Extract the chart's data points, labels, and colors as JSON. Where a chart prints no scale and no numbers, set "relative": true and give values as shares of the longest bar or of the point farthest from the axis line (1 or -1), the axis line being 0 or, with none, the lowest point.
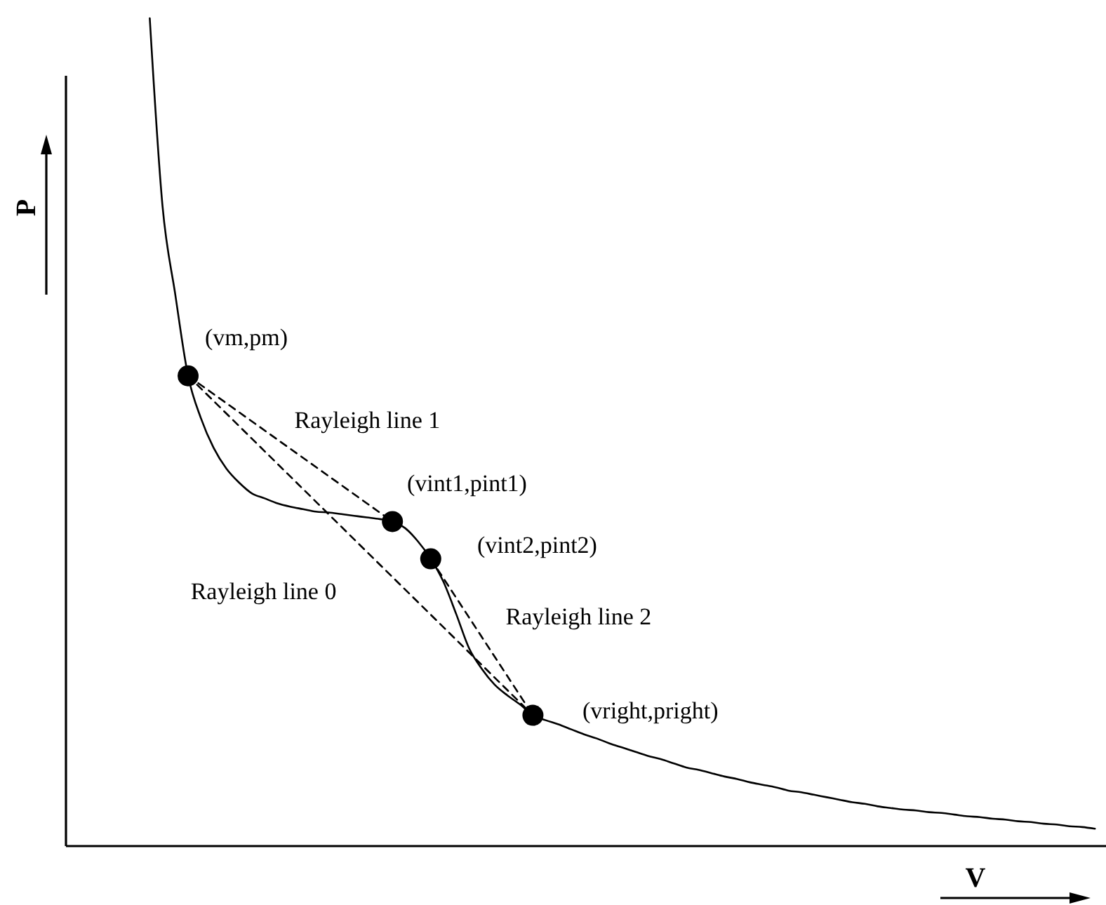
{
  "chart_data": {
    "type": "line",
    "xlabel": "V",
    "ylabel": "P",
    "relative": true,
    "annotations": [
      "(vm,pm)",
      "(vint1,pint1)",
      "(vint2,pint2)",
      "(vright,pright)"
    ],
    "categories": [
      null,
      null,
      null,
      null,
      null,
      null,
      null,
      null,
      null,
      null,
      null,
      null,
      null,
      null,
      null,
      null,
      null,
      null,
      null,
      null,
      null,
      null,
      null,
      null,
      null,
      null,
      null,
      null,
      null,
      null,
      null,
      null,
      null,
      null,
      null,
      null,
      null,
      null,
      null,
      null,
      null,
      null,
      null,
      null,
      null,
      null,
      null,
      null,
      null,
      null,
      null,
      null,
      null,
      null,
      null,
      null,
      null,
      null,
      null,
      null,
      null,
      null,
      null,
      null,
      null,
      null,
      null,
      null,
      null,
      null,
      null,
      null,
      null,
      null,
      null
    ],
    "series": [
      {
        "name": "Rayleigh line 1",
        "color": "#000000",
        "line_style": "dashed",
        "marker": "circle",
        "values": [
          null,
          null,
          null,
          0.568,
          null,
          null,
          null,
          null,
          null,
          null,
          null,
          null,
          null,
          null,
          null,
          null,
          null,
          null,
          null,
          0.392,
          null,
          null,
          null,
          null,
          null,
          null,
          null,
          null,
          null,
          null,
          null,
          null,
          null,
          null,
          null,
          null,
          null,
          null,
          null,
          null,
          null,
          null,
          null,
          null,
          null,
          null,
          null,
          null,
          null,
          null,
          null,
          null,
          null,
          null,
          null,
          null,
          null,
          null,
          null,
          null,
          null,
          null,
          null,
          null,
          null,
          null,
          null,
          null,
          null,
          null,
          null,
          null,
          null,
          null,
          null
        ]
      },
      {
        "name": "Rayleigh line 2",
        "color": "#000000",
        "line_style": "dashed",
        "marker": "circle",
        "values": [
          null,
          null,
          null,
          null,
          null,
          null,
          null,
          null,
          null,
          null,
          null,
          null,
          null,
          null,
          null,
          null,
          null,
          null,
          null,
          null,
          null,
          null,
          0.347,
          null,
          null,
          null,
          null,
          null,
          null,
          null,
          0.158,
          null,
          null,
          null,
          null,
          null,
          null,
          null,
          null,
          null,
          null,
          null,
          null,
          null,
          null,
          null,
          null,
          null,
          null,
          null,
          null,
          null,
          null,
          null,
          null,
          null,
          null,
          null,
          null,
          null,
          null,
          null,
          null,
          null,
          null,
          null,
          null,
          null,
          null,
          null,
          null,
          null,
          null,
          null,
          null
        ]
      },
      {
        "name": "Rayleigh line 0",
        "color": "#000000",
        "line_style": "dashed",
        "values": [
          null,
          null,
          null,
          0.568,
          null,
          null,
          null,
          null,
          null,
          null,
          null,
          null,
          null,
          null,
          null,
          null,
          null,
          null,
          null,
          null,
          null,
          null,
          null,
          null,
          null,
          null,
          null,
          null,
          null,
          null,
          0.158,
          null,
          null,
          null,
          null,
          null,
          null,
          null,
          null,
          null,
          null,
          null,
          null,
          null,
          null,
          null,
          null,
          null,
          null,
          null,
          null,
          null,
          null,
          null,
          null,
          null,
          null,
          null,
          null,
          null,
          null,
          null,
          null,
          null,
          null,
          null,
          null,
          null,
          null,
          null,
          null,
          null,
          null,
          null,
          null
        ]
      },
      {
        "color": "#000000",
        "values": [
          1.0,
          0.773,
          0.666,
          0.568,
          0.517,
          0.481,
          0.456,
          0.439,
          0.426,
          0.42,
          0.414,
          0.41,
          0.407,
          0.404,
          0.403,
          0.401,
          0.399,
          0.397,
          0.395,
          0.392,
          0.384,
          0.368,
          0.347,
          0.319,
          0.28,
          0.239,
          0.214,
          0.195,
          0.182,
          0.171,
          0.158,
          0.152,
          0.147,
          0.141,
          0.135,
          0.13,
          0.124,
          0.119,
          0.114,
          0.109,
          0.105,
          0.1,
          0.095,
          0.092,
          0.088,
          0.084,
          0.081,
          0.077,
          0.074,
          0.071,
          0.067,
          0.065,
          0.062,
          0.059,
          0.056,
          0.053,
          0.051,
          0.048,
          0.046,
          0.044,
          0.043,
          0.041,
          0.04,
          0.038,
          0.036,
          0.035,
          0.033,
          0.032,
          0.03,
          0.029,
          0.027,
          0.026,
          0.024,
          0.023,
          0.021
        ]
      }
    ]
  }
}
